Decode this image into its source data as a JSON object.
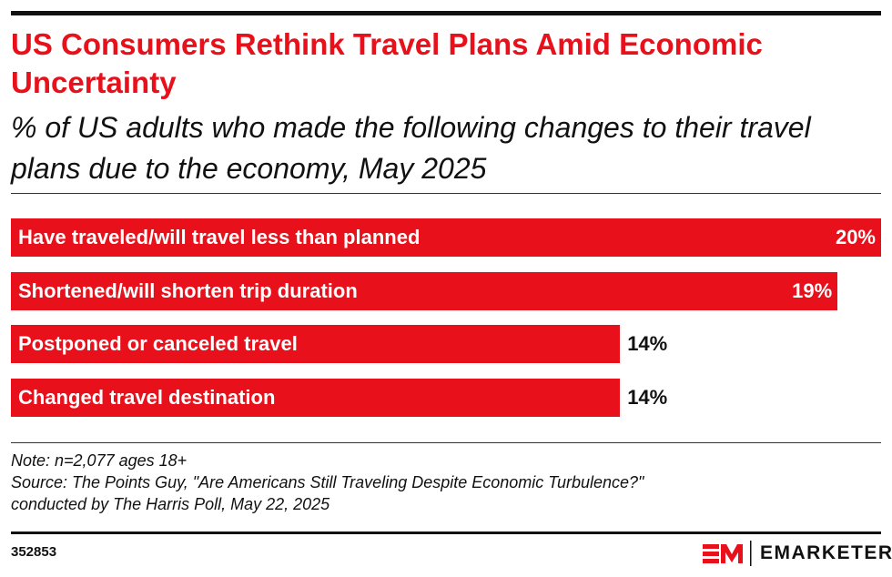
{
  "title": "US Consumers Rethink Travel Plans Amid Economic Uncertainty",
  "subtitle": "% of US adults who made the following changes to their travel plans due to the economy, May 2025",
  "chart_data": {
    "type": "bar",
    "orientation": "horizontal",
    "categories": [
      "Have traveled/will travel less than planned",
      "Shortened/will shorten trip duration",
      "Postponed or canceled travel",
      "Changed travel destination"
    ],
    "values": [
      20,
      19,
      14,
      14
    ],
    "value_labels": [
      "20%",
      "19%",
      "14%",
      "14%"
    ],
    "xlim": [
      0,
      20
    ],
    "grid": false,
    "bar_color": "#e8101a"
  },
  "notes": [
    "Note: n=2,077 ages 18+",
    "Source: The Points Guy, \"Are Americans Still Traveling Despite Economic Turbulence?\"",
    "conducted by The Harris Poll, May 22, 2025"
  ],
  "footer": {
    "chart_id": "352853",
    "brand": "EMARKETER",
    "logo_text": "EM"
  },
  "colors": {
    "accent": "#e8101a",
    "text": "#111111"
  }
}
